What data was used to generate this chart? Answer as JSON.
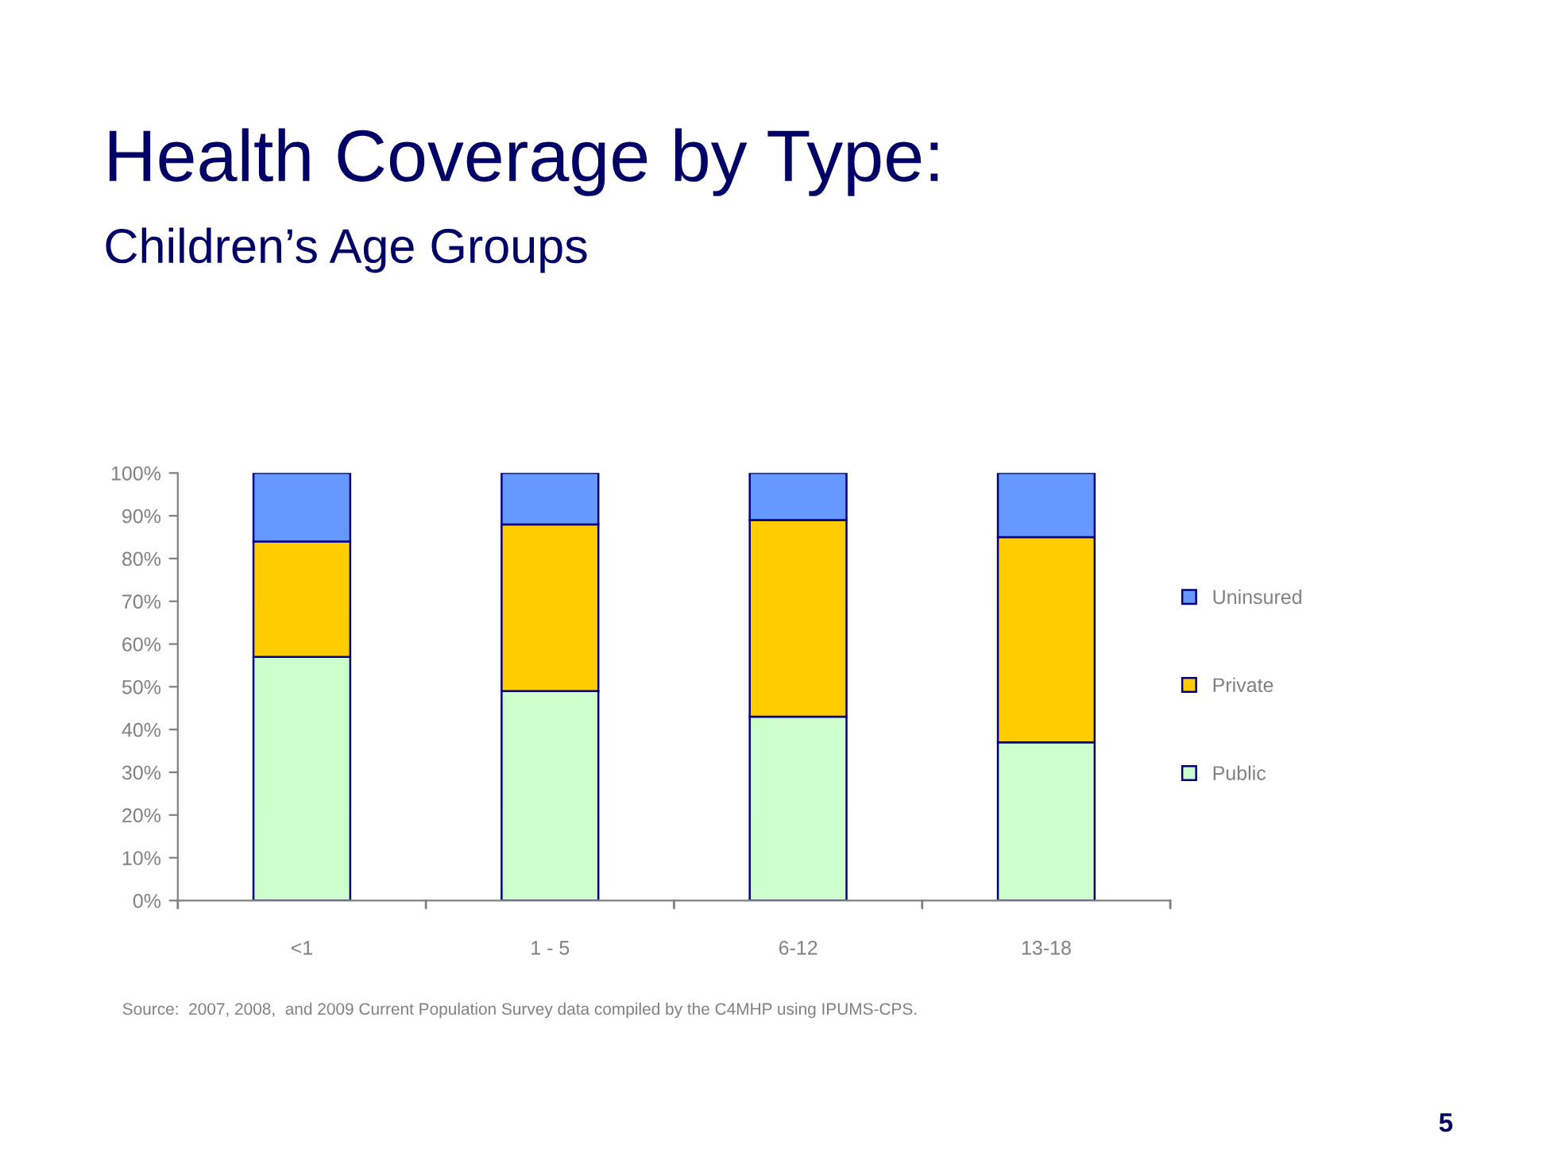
{
  "chart_data": {
    "type": "bar",
    "title": "Health Coverage by Type:",
    "subtitle": "Children’s Age Groups",
    "categories": [
      "<1",
      "1 - 5",
      "6-12",
      "13-18"
    ],
    "stacked": true,
    "series": [
      {
        "name": "Public",
        "color": "#ccffcc",
        "values": [
          57,
          49,
          43,
          37
        ]
      },
      {
        "name": "Private",
        "color": "#ffcc00",
        "values": [
          27,
          39,
          46,
          48
        ]
      },
      {
        "name": "Uninsured",
        "color": "#6699ff",
        "values": [
          16,
          12,
          11,
          15
        ]
      }
    ],
    "ylim": [
      0,
      100
    ],
    "yticks": [
      {
        "value": 0,
        "label": "0%"
      },
      {
        "value": 10,
        "label": "10%"
      },
      {
        "value": 20,
        "label": "20%"
      },
      {
        "value": 30,
        "label": "30%"
      },
      {
        "value": 40,
        "label": "40%"
      },
      {
        "value": 50,
        "label": "50%"
      },
      {
        "value": 60,
        "label": "60%"
      },
      {
        "value": 70,
        "label": "70%"
      },
      {
        "value": 80,
        "label": "80%"
      },
      {
        "value": 90,
        "label": "90%"
      },
      {
        "value": 100,
        "label": "100%"
      }
    ],
    "grid": false,
    "legend": "right",
    "annotations": [
      "Source:  2007, 2008,  and 2009 Current Population Survey data compiled by the C4MHP using IPUMS-CPS.",
      "5"
    ]
  }
}
